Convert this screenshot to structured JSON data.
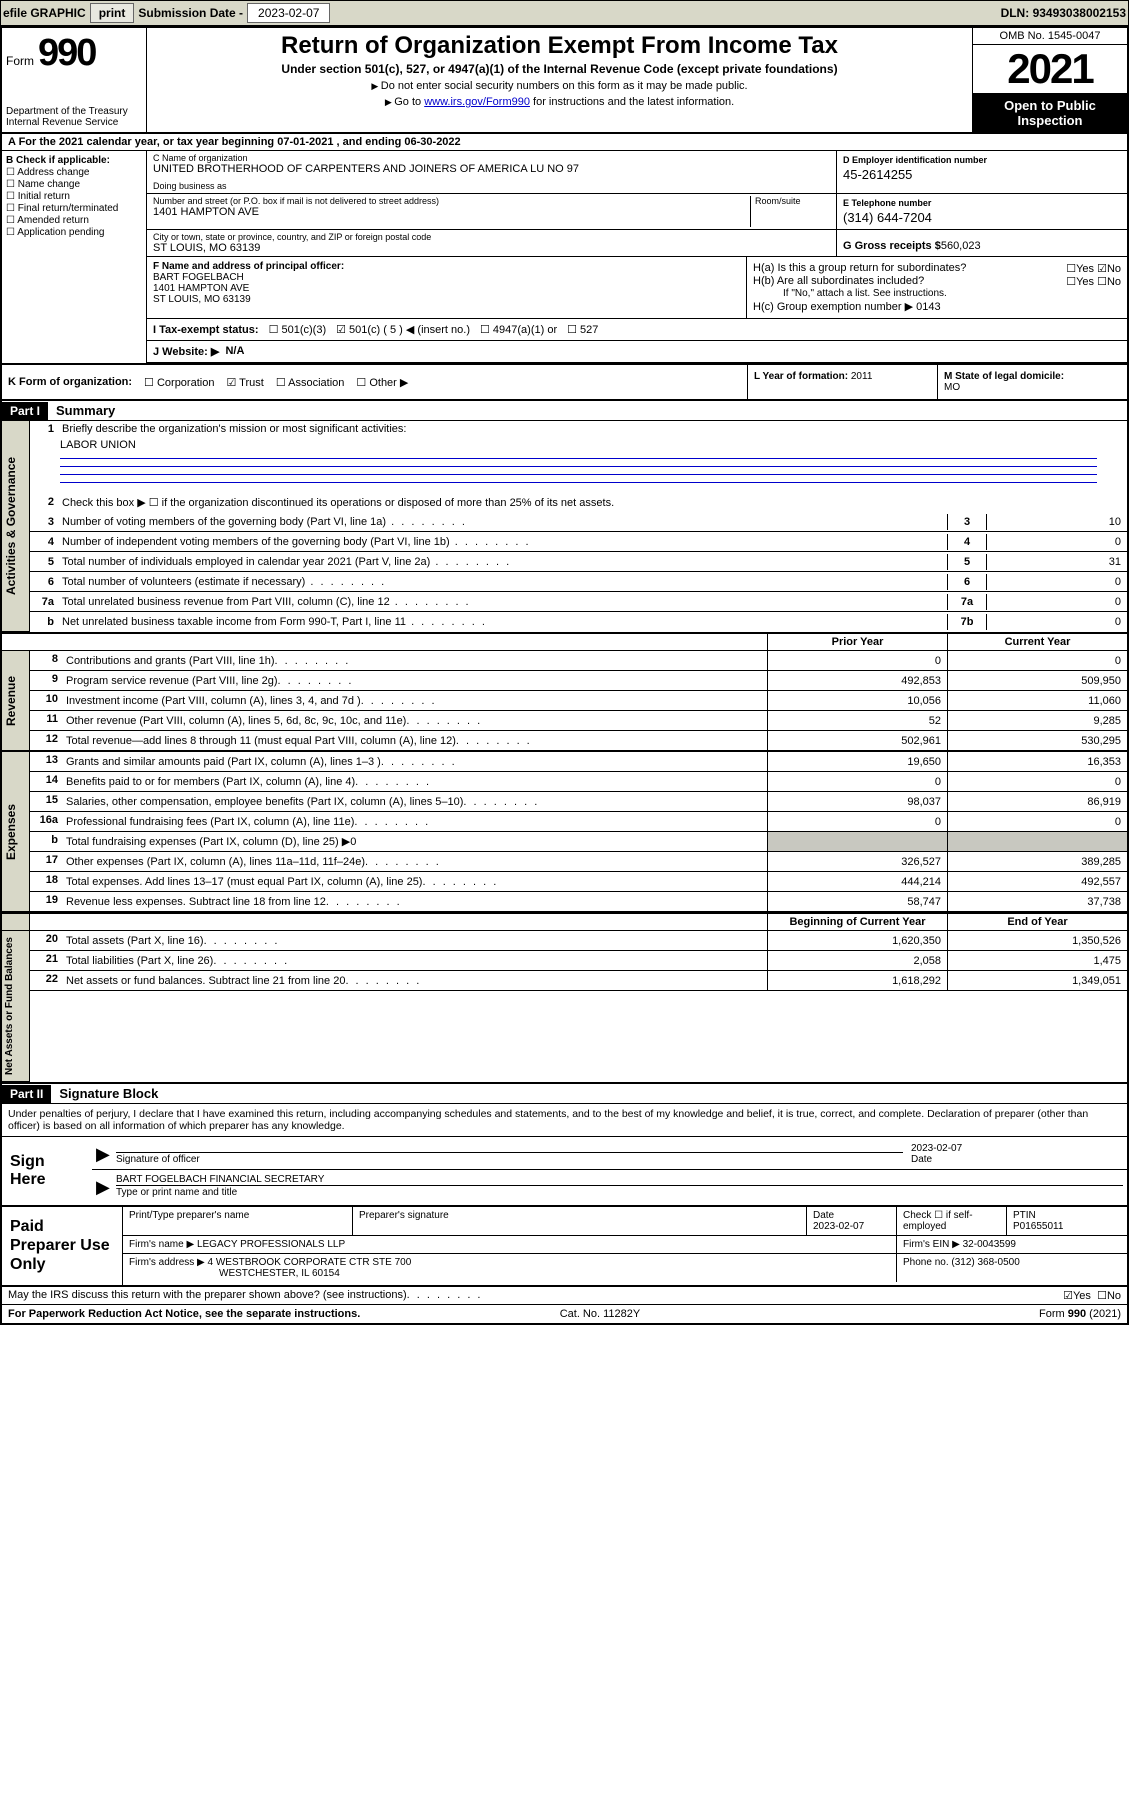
{
  "topbar": {
    "efile": "efile GRAPHIC",
    "print": "print",
    "sub_label": "Submission Date - ",
    "sub_date": "2023-02-07",
    "dln_label": "DLN: ",
    "dln": "93493038002153"
  },
  "header": {
    "form_word": "Form",
    "form_no": "990",
    "dept": "Department of the Treasury\nInternal Revenue Service",
    "title": "Return of Organization Exempt From Income Tax",
    "subtitle": "Under section 501(c), 527, or 4947(a)(1) of the Internal Revenue Code (except private foundations)",
    "note1": "Do not enter social security numbers on this form as it may be made public.",
    "note2_pre": "Go to ",
    "note2_link": "www.irs.gov/Form990",
    "note2_post": " for instructions and the latest information.",
    "omb": "OMB No. 1545-0047",
    "year": "2021",
    "open": "Open to Public Inspection"
  },
  "row_a": {
    "text_pre": "A For the 2021 calendar year, or tax year beginning ",
    "begin": "07-01-2021",
    "mid": " , and ending ",
    "end": "06-30-2022"
  },
  "col_b": {
    "label": "B Check if applicable:",
    "items": [
      "Address change",
      "Name change",
      "Initial return",
      "Final return/terminated",
      "Amended return",
      "Application pending"
    ]
  },
  "c": {
    "name_lbl": "C Name of organization",
    "name": "UNITED BROTHERHOOD OF CARPENTERS AND JOINERS OF AMERICA LU NO 97",
    "dba_lbl": "Doing business as",
    "dba": "",
    "addr_lbl": "Number and street (or P.O. box if mail is not delivered to street address)",
    "room_lbl": "Room/suite",
    "addr": "1401 HAMPTON AVE",
    "city_lbl": "City or town, state or province, country, and ZIP or foreign postal code",
    "city": "ST LOUIS, MO  63139"
  },
  "d": {
    "lbl": "D Employer identification number",
    "val": "45-2614255"
  },
  "e": {
    "lbl": "E Telephone number",
    "val": "(314) 644-7204"
  },
  "g": {
    "lbl": "G Gross receipts $ ",
    "val": "560,023"
  },
  "f": {
    "lbl": "F  Name and address of principal officer:",
    "name": "BART FOGELBACH",
    "addr1": "1401 HAMPTON AVE",
    "addr2": "ST LOUIS, MO  63139"
  },
  "h": {
    "a_lbl": "H(a)  Is this a group return for subordinates?",
    "a_yes": "Yes",
    "a_no": "No",
    "b_lbl": "H(b)  Are all subordinates included?",
    "b_note": "If \"No,\" attach a list. See instructions.",
    "c_lbl": "H(c)  Group exemption number ▶",
    "c_val": "0143"
  },
  "i": {
    "lbl": "I   Tax-exempt status:",
    "opt1": "501(c)(3)",
    "opt2_pre": "501(c) ( ",
    "opt2_val": "5",
    "opt2_post": " ) ◀ (insert no.)",
    "opt3": "4947(a)(1) or",
    "opt4": "527"
  },
  "j": {
    "lbl": "J   Website: ▶",
    "val": "N/A"
  },
  "k": {
    "lbl": "K Form of organization:",
    "opts": [
      "Corporation",
      "Trust",
      "Association",
      "Other ▶"
    ],
    "checked_idx": 1
  },
  "l": {
    "lbl": "L Year of formation: ",
    "val": "2011"
  },
  "m": {
    "lbl": "M State of legal domicile:",
    "val": "MO"
  },
  "part1": {
    "hdr": "Part I",
    "title": "Summary"
  },
  "sec_ag": {
    "tab": "Activities & Governance",
    "lines": [
      {
        "n": "1",
        "t": "Briefly describe the organization's mission or most significant activities:"
      },
      {
        "val": "LABOR UNION"
      },
      {
        "n": "2",
        "t": "Check this box ▶ ☐  if the organization discontinued its operations or disposed of more than 25% of its net assets."
      },
      {
        "n": "3",
        "t": "Number of voting members of the governing body (Part VI, line 1a)",
        "cl": "3",
        "cv": "10"
      },
      {
        "n": "4",
        "t": "Number of independent voting members of the governing body (Part VI, line 1b)",
        "cl": "4",
        "cv": "0"
      },
      {
        "n": "5",
        "t": "Total number of individuals employed in calendar year 2021 (Part V, line 2a)",
        "cl": "5",
        "cv": "31"
      },
      {
        "n": "6",
        "t": "Total number of volunteers (estimate if necessary)",
        "cl": "6",
        "cv": "0"
      },
      {
        "n": "7a",
        "t": "Total unrelated business revenue from Part VIII, column (C), line 12",
        "cl": "7a",
        "cv": "0"
      },
      {
        "n": "b",
        "t": "Net unrelated business taxable income from Form 990-T, Part I, line 11",
        "cl": "7b",
        "cv": "0"
      }
    ]
  },
  "two_col": {
    "py": "Prior Year",
    "cy": "Current Year"
  },
  "sec_rev": {
    "tab": "Revenue",
    "lines": [
      {
        "n": "8",
        "t": "Contributions and grants (Part VIII, line 1h)",
        "pv": "0",
        "cv": "0"
      },
      {
        "n": "9",
        "t": "Program service revenue (Part VIII, line 2g)",
        "pv": "492,853",
        "cv": "509,950"
      },
      {
        "n": "10",
        "t": "Investment income (Part VIII, column (A), lines 3, 4, and 7d )",
        "pv": "10,056",
        "cv": "11,060"
      },
      {
        "n": "11",
        "t": "Other revenue (Part VIII, column (A), lines 5, 6d, 8c, 9c, 10c, and 11e)",
        "pv": "52",
        "cv": "9,285"
      },
      {
        "n": "12",
        "t": "Total revenue—add lines 8 through 11 (must equal Part VIII, column (A), line 12)",
        "pv": "502,961",
        "cv": "530,295"
      }
    ]
  },
  "sec_exp": {
    "tab": "Expenses",
    "lines": [
      {
        "n": "13",
        "t": "Grants and similar amounts paid (Part IX, column (A), lines 1–3 )",
        "pv": "19,650",
        "cv": "16,353"
      },
      {
        "n": "14",
        "t": "Benefits paid to or for members (Part IX, column (A), line 4)",
        "pv": "0",
        "cv": "0"
      },
      {
        "n": "15",
        "t": "Salaries, other compensation, employee benefits (Part IX, column (A), lines 5–10)",
        "pv": "98,037",
        "cv": "86,919"
      },
      {
        "n": "16a",
        "t": "Professional fundraising fees (Part IX, column (A), line 11e)",
        "pv": "0",
        "cv": "0"
      },
      {
        "n": "b",
        "t": "Total fundraising expenses (Part IX, column (D), line 25) ▶0",
        "shade": true
      },
      {
        "n": "17",
        "t": "Other expenses (Part IX, column (A), lines 11a–11d, 11f–24e)",
        "pv": "326,527",
        "cv": "389,285"
      },
      {
        "n": "18",
        "t": "Total expenses. Add lines 13–17 (must equal Part IX, column (A), line 25)",
        "pv": "444,214",
        "cv": "492,557"
      },
      {
        "n": "19",
        "t": "Revenue less expenses. Subtract line 18 from line 12",
        "pv": "58,747",
        "cv": "37,738"
      }
    ]
  },
  "two_col2": {
    "py": "Beginning of Current Year",
    "cy": "End of Year"
  },
  "sec_na": {
    "tab": "Net Assets or Fund Balances",
    "lines": [
      {
        "n": "20",
        "t": "Total assets (Part X, line 16)",
        "pv": "1,620,350",
        "cv": "1,350,526"
      },
      {
        "n": "21",
        "t": "Total liabilities (Part X, line 26)",
        "pv": "2,058",
        "cv": "1,475"
      },
      {
        "n": "22",
        "t": "Net assets or fund balances. Subtract line 21 from line 20",
        "pv": "1,618,292",
        "cv": "1,349,051"
      }
    ]
  },
  "part2": {
    "hdr": "Part II",
    "title": "Signature Block"
  },
  "sig": {
    "penalty": "Under penalties of perjury, I declare that I have examined this return, including accompanying schedules and statements, and to the best of my knowledge and belief, it is true, correct, and complete. Declaration of preparer (other than officer) is based on all information of which preparer has any knowledge.",
    "sign_here": "Sign Here",
    "sig_officer_lbl": "Signature of officer",
    "date_lbl": "Date",
    "date_val": "2023-02-07",
    "officer_name": "BART FOGELBACH  FINANCIAL SECRETARY",
    "name_title_lbl": "Type or print name and title"
  },
  "prep": {
    "title": "Paid Preparer Use Only",
    "hdr": [
      "Print/Type preparer's name",
      "Preparer's signature",
      "Date",
      "",
      "PTIN"
    ],
    "date": "2023-02-07",
    "check_lbl": "Check ☐ if self-employed",
    "ptin": "P01655011",
    "firm_name_lbl": "Firm's name    ▶ ",
    "firm_name": "LEGACY PROFESSIONALS LLP",
    "firm_ein_lbl": "Firm's EIN ▶ ",
    "firm_ein": "32-0043599",
    "firm_addr_lbl": "Firm's address ▶ ",
    "firm_addr1": "4 WESTBROOK CORPORATE CTR STE 700",
    "firm_addr2": "WESTCHESTER, IL  60154",
    "phone_lbl": "Phone no. ",
    "phone": "(312) 368-0500"
  },
  "may": {
    "text": "May the IRS discuss this return with the preparer shown above? (see instructions)",
    "yes": "Yes",
    "no": "No"
  },
  "foot": {
    "left": "For Paperwork Reduction Act Notice, see the separate instructions.",
    "mid": "Cat. No. 11282Y",
    "right_pre": "Form ",
    "right_form": "990",
    "right_post": " (2021)"
  }
}
